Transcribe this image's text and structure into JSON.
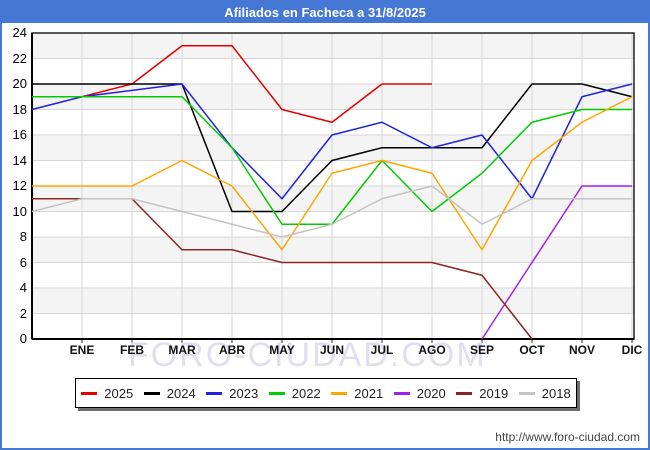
{
  "window": {
    "title": "Afiliados en Facheca a 31/8/2025"
  },
  "watermark": "FORO-CIUDAD.COM",
  "footer": {
    "url": "http://www.foro-ciudad.com"
  },
  "chart_data": {
    "type": "line",
    "title": "Afiliados en Facheca a 31/8/2025",
    "months": [
      "ENE",
      "FEB",
      "MAR",
      "ABR",
      "MAY",
      "JUN",
      "JUL",
      "AGO",
      "SEP",
      "OCT",
      "NOV",
      "DIC"
    ],
    "ylim": [
      0,
      24
    ],
    "ytick_step": 2,
    "grid": true,
    "legend_position": "bottom",
    "series": [
      {
        "name": "2025",
        "color": "#e60000",
        "start": null,
        "values": [
          19,
          20,
          23,
          23,
          18,
          17,
          20,
          20,
          null,
          null,
          null,
          null
        ]
      },
      {
        "name": "2024",
        "color": "#000000",
        "start": 20,
        "values": [
          20,
          20,
          20,
          10,
          10,
          14,
          15,
          15,
          15,
          20,
          20,
          19
        ]
      },
      {
        "name": "2023",
        "color": "#2222dd",
        "start": 18,
        "values": [
          19,
          19.5,
          20,
          15,
          11,
          16,
          17,
          15,
          16,
          11,
          19,
          20
        ]
      },
      {
        "name": "2022",
        "color": "#00cc00",
        "start": 19,
        "values": [
          19,
          19,
          19,
          15,
          9,
          9,
          14,
          10,
          13,
          17,
          18,
          18
        ]
      },
      {
        "name": "2021",
        "color": "#ffa500",
        "start": 12,
        "values": [
          12,
          12,
          14,
          12,
          7,
          13,
          14,
          13,
          7,
          14,
          17,
          19
        ]
      },
      {
        "name": "2020",
        "color": "#a020f0",
        "start": null,
        "values": [
          null,
          null,
          null,
          null,
          null,
          null,
          null,
          null,
          0,
          6,
          12,
          12
        ]
      },
      {
        "name": "2019",
        "color": "#8e2323",
        "start": 11,
        "values": [
          11,
          11,
          7,
          7,
          6,
          6,
          6,
          6,
          5,
          0,
          null,
          null
        ]
      },
      {
        "name": "2018",
        "color": "#c4c4c4",
        "start": 10,
        "values": [
          11,
          11,
          10,
          9,
          8,
          9,
          11,
          12,
          9,
          11,
          11,
          11
        ]
      }
    ]
  }
}
